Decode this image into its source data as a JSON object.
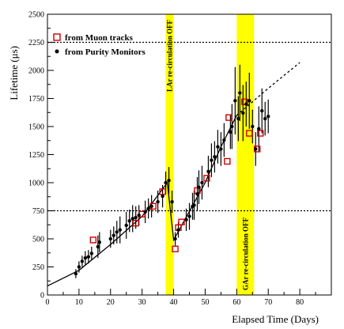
{
  "chart_data": {
    "type": "scatter",
    "xlabel": "Elapsed Time (Days)",
    "ylabel": "Lifetime (μs)",
    "xlim": [
      0,
      90
    ],
    "ylim": [
      0,
      2500
    ],
    "x_ticks": [
      0,
      10,
      20,
      30,
      40,
      50,
      60,
      70,
      80
    ],
    "y_ticks": [
      0,
      250,
      500,
      750,
      1000,
      1250,
      1500,
      1750,
      2000,
      2250,
      2500
    ],
    "reference_lines_y": [
      750,
      2250
    ],
    "legend": {
      "placement": "top-left",
      "items": [
        {
          "label": "from Muon tracks",
          "marker": "open-square",
          "color": "#cc0000"
        },
        {
          "label": "from Purity Monitors",
          "marker": "filled-circle",
          "color": "#000000"
        }
      ]
    },
    "bands": [
      {
        "x_start": 37.5,
        "x_end": 40,
        "color": "#ffff00",
        "label": "LAr re-circulation OFF",
        "label_position": "top"
      },
      {
        "x_start": 60,
        "x_end": 65.5,
        "color": "#ffff00",
        "label": "GAr re-circulation OFF",
        "label_position": "bottom"
      }
    ],
    "series": [
      {
        "name": "from Muon tracks",
        "marker": "open-square",
        "color": "#cc0000",
        "points": [
          {
            "x": 14.5,
            "y": 490
          },
          {
            "x": 28.0,
            "y": 640
          },
          {
            "x": 30.0,
            "y": 720
          },
          {
            "x": 33.5,
            "y": 790
          },
          {
            "x": 36.5,
            "y": 920
          },
          {
            "x": 40.5,
            "y": 410
          },
          {
            "x": 41.5,
            "y": 600
          },
          {
            "x": 42.5,
            "y": 650
          },
          {
            "x": 47.5,
            "y": 930
          },
          {
            "x": 50.5,
            "y": 1040
          },
          {
            "x": 57.0,
            "y": 1190
          },
          {
            "x": 57.5,
            "y": 1580
          },
          {
            "x": 62.5,
            "y": 1720
          },
          {
            "x": 64.0,
            "y": 1440
          },
          {
            "x": 66.5,
            "y": 1300
          },
          {
            "x": 67.5,
            "y": 1440
          }
        ]
      },
      {
        "name": "from Purity Monitors",
        "marker": "filled-circle",
        "color": "#000000",
        "points": [
          {
            "x": 9,
            "y": 190,
            "err": 40
          },
          {
            "x": 10,
            "y": 250,
            "err": 50
          },
          {
            "x": 11,
            "y": 300,
            "err": 50
          },
          {
            "x": 12,
            "y": 330,
            "err": 60
          },
          {
            "x": 13,
            "y": 340,
            "err": 60
          },
          {
            "x": 14,
            "y": 370,
            "err": 60
          },
          {
            "x": 16,
            "y": 430,
            "err": 100
          },
          {
            "x": 16.5,
            "y": 470,
            "err": 90
          },
          {
            "x": 20,
            "y": 500,
            "err": 80
          },
          {
            "x": 21,
            "y": 530,
            "err": 80
          },
          {
            "x": 22,
            "y": 560,
            "err": 100
          },
          {
            "x": 23,
            "y": 580,
            "err": 120
          },
          {
            "x": 25,
            "y": 620,
            "err": 120
          },
          {
            "x": 26,
            "y": 660,
            "err": 100
          },
          {
            "x": 27,
            "y": 680,
            "err": 120
          },
          {
            "x": 28,
            "y": 690,
            "err": 100
          },
          {
            "x": 29,
            "y": 710,
            "err": 90
          },
          {
            "x": 31,
            "y": 740,
            "err": 100
          },
          {
            "x": 32,
            "y": 770,
            "err": 90
          },
          {
            "x": 33,
            "y": 790,
            "err": 100
          },
          {
            "x": 35,
            "y": 830,
            "err": 100
          },
          {
            "x": 36.5,
            "y": 880,
            "err": 100
          },
          {
            "x": 37.5,
            "y": 1000,
            "err": 100
          },
          {
            "x": 38.5,
            "y": 1020,
            "err": 120
          },
          {
            "x": 39.5,
            "y": 830,
            "err": 100
          },
          {
            "x": 40.5,
            "y": 500,
            "err": 60
          },
          {
            "x": 41.5,
            "y": 580,
            "err": 70
          },
          {
            "x": 44,
            "y": 670,
            "err": 100
          },
          {
            "x": 45,
            "y": 700,
            "err": 120
          },
          {
            "x": 46,
            "y": 790,
            "err": 120
          },
          {
            "x": 46.5,
            "y": 800,
            "err": 130
          },
          {
            "x": 47.5,
            "y": 900,
            "err": 150
          },
          {
            "x": 48,
            "y": 960,
            "err": 150
          },
          {
            "x": 49,
            "y": 1000,
            "err": 150
          },
          {
            "x": 51,
            "y": 1100,
            "err": 140
          },
          {
            "x": 52,
            "y": 1200,
            "err": 150
          },
          {
            "x": 53,
            "y": 1230,
            "err": 140
          },
          {
            "x": 54,
            "y": 1320,
            "err": 150
          },
          {
            "x": 55,
            "y": 1300,
            "err": 150
          },
          {
            "x": 56,
            "y": 1380,
            "err": 150
          },
          {
            "x": 58,
            "y": 1450,
            "err": 150
          },
          {
            "x": 58.5,
            "y": 1500,
            "err": 200
          },
          {
            "x": 59.5,
            "y": 1730,
            "err": 300
          },
          {
            "x": 60.5,
            "y": 1570,
            "err": 200
          },
          {
            "x": 61,
            "y": 1800,
            "err": 250
          },
          {
            "x": 62,
            "y": 1620,
            "err": 250
          },
          {
            "x": 63,
            "y": 1700,
            "err": 200
          },
          {
            "x": 64,
            "y": 1730,
            "err": 250
          },
          {
            "x": 65,
            "y": 1500,
            "err": 150
          },
          {
            "x": 66,
            "y": 1300,
            "err": 150
          },
          {
            "x": 67,
            "y": 1480,
            "err": 200
          },
          {
            "x": 68,
            "y": 1640,
            "err": 200
          },
          {
            "x": 69,
            "y": 1570,
            "err": 150
          },
          {
            "x": 70,
            "y": 1590,
            "err": 150
          }
        ]
      }
    ],
    "fit_lines": [
      {
        "style": "solid",
        "points": [
          [
            0,
            80
          ],
          [
            10,
            220
          ],
          [
            20,
            450
          ],
          [
            30,
            700
          ],
          [
            38,
            1000
          ],
          [
            40,
            490
          ],
          [
            50,
            1000
          ],
          [
            55,
            1320
          ],
          [
            60,
            1600
          ]
        ]
      },
      {
        "style": "dashed",
        "points": [
          [
            60,
            1600
          ],
          [
            70,
            1840
          ],
          [
            80,
            2070
          ]
        ]
      }
    ]
  }
}
